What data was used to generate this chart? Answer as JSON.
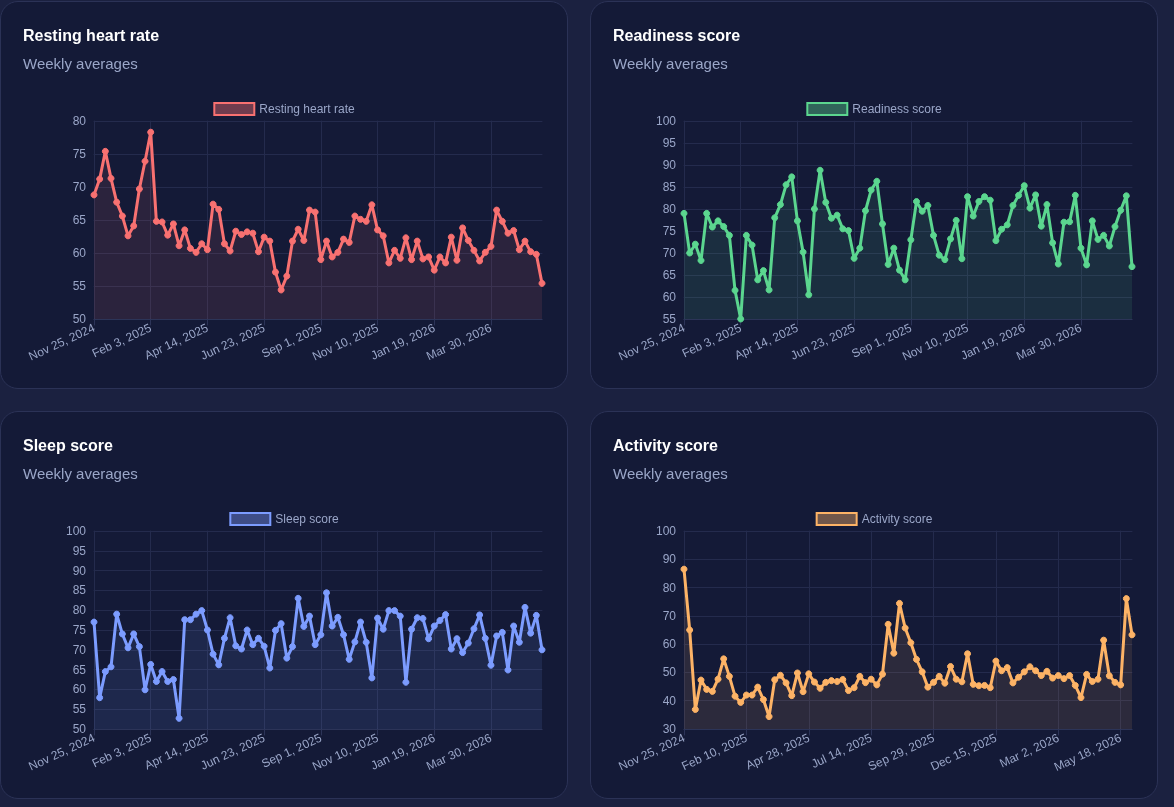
{
  "chart_data": [
    {
      "type": "area",
      "title": "Resting heart rate",
      "subtitle": "Weekly averages",
      "grid": true,
      "legend": "top",
      "marker": "circle",
      "x": [
        "2024-11-25",
        "2024-12-02",
        "2024-12-09",
        "2024-12-16",
        "2024-12-23",
        "2024-12-30",
        "2025-01-06",
        "2025-01-13",
        "2025-01-20",
        "2025-01-27",
        "2025-02-03",
        "2025-02-10",
        "2025-02-17",
        "2025-02-24",
        "2025-03-03",
        "2025-03-10",
        "2025-03-17",
        "2025-03-24",
        "2025-03-31",
        "2025-04-07",
        "2025-04-14",
        "2025-04-21",
        "2025-04-28",
        "2025-05-05",
        "2025-05-12",
        "2025-05-19",
        "2025-05-26",
        "2025-06-02",
        "2025-06-09",
        "2025-06-16",
        "2025-06-23",
        "2025-06-30",
        "2025-07-07",
        "2025-07-14",
        "2025-07-21",
        "2025-07-28",
        "2025-08-04",
        "2025-08-11",
        "2025-08-18",
        "2025-08-25",
        "2025-09-01",
        "2025-09-08",
        "2025-09-15",
        "2025-09-22",
        "2025-09-29",
        "2025-10-06",
        "2025-10-13",
        "2025-10-20",
        "2025-10-27",
        "2025-11-03",
        "2025-11-10",
        "2025-11-17",
        "2025-11-24",
        "2025-12-01",
        "2025-12-08",
        "2025-12-15",
        "2025-12-22",
        "2025-12-29",
        "2026-01-05",
        "2026-01-12",
        "2026-01-19",
        "2026-01-26",
        "2026-02-02",
        "2026-02-09",
        "2026-02-16",
        "2026-02-23",
        "2026-03-02",
        "2026-03-09",
        "2026-03-16",
        "2026-03-23",
        "2026-03-30",
        "2026-04-06",
        "2026-04-13",
        "2026-04-20",
        "2026-04-27",
        "2026-05-04",
        "2026-05-11",
        "2026-05-18",
        "2026-05-25",
        "2026-06-01"
      ],
      "xlim": [
        "2024-11-25",
        "2026-06-01"
      ],
      "xticks": [
        {
          "value": "2024-11-25",
          "label": "Nov 25, 2024"
        },
        {
          "value": "2025-02-03",
          "label": "Feb 3, 2025"
        },
        {
          "value": "2025-04-14",
          "label": "Apr 14, 2025"
        },
        {
          "value": "2025-06-23",
          "label": "Jun 23, 2025"
        },
        {
          "value": "2025-09-01",
          "label": "Sep 1, 2025"
        },
        {
          "value": "2025-11-10",
          "label": "Nov 10, 2025"
        },
        {
          "value": "2026-01-19",
          "label": "Jan 19, 2026"
        },
        {
          "value": "2026-03-30",
          "label": "Mar 30, 2026"
        }
      ],
      "ylim": [
        50,
        80
      ],
      "yticks": [
        50,
        55,
        60,
        65,
        70,
        75,
        80
      ],
      "series": [
        {
          "name": "Resting heart rate",
          "color": "#f87171",
          "values": [
            68.8,
            71.2,
            75.4,
            71.3,
            67.7,
            65.6,
            62.6,
            64.1,
            69.7,
            73.9,
            78.3,
            64.8,
            64.7,
            62.7,
            64.4,
            61.1,
            63.5,
            60.7,
            60.1,
            61.4,
            60.5,
            67.4,
            66.6,
            61.4,
            60.3,
            63.3,
            62.8,
            63.2,
            63.0,
            60.2,
            62.4,
            61.8,
            57.1,
            54.4,
            56.5,
            61.8,
            63.6,
            61.9,
            66.5,
            66.2,
            59.0,
            61.8,
            59.4,
            60.1,
            62.1,
            61.6,
            65.6,
            65.1,
            64.8,
            67.3,
            63.5,
            62.6,
            58.5,
            60.4,
            59.2,
            62.3,
            59.0,
            61.8,
            59.1,
            59.4,
            57.4,
            59.4,
            58.5,
            62.4,
            58.9,
            63.8,
            61.9,
            60.4,
            58.8,
            60.1,
            61.0,
            66.5,
            64.8,
            63.0,
            63.4,
            60.5,
            61.8,
            60.2,
            59.8,
            55.4
          ]
        }
      ]
    },
    {
      "type": "area",
      "title": "Readiness score",
      "subtitle": "Weekly averages",
      "grid": true,
      "legend": "top",
      "marker": "circle",
      "x": [
        "2024-11-25",
        "2024-12-02",
        "2024-12-09",
        "2024-12-16",
        "2024-12-23",
        "2024-12-30",
        "2025-01-06",
        "2025-01-13",
        "2025-01-20",
        "2025-01-27",
        "2025-02-03",
        "2025-02-10",
        "2025-02-17",
        "2025-02-24",
        "2025-03-03",
        "2025-03-10",
        "2025-03-17",
        "2025-03-24",
        "2025-03-31",
        "2025-04-07",
        "2025-04-14",
        "2025-04-21",
        "2025-04-28",
        "2025-05-05",
        "2025-05-12",
        "2025-05-19",
        "2025-05-26",
        "2025-06-02",
        "2025-06-09",
        "2025-06-16",
        "2025-06-23",
        "2025-06-30",
        "2025-07-07",
        "2025-07-14",
        "2025-07-21",
        "2025-07-28",
        "2025-08-04",
        "2025-08-11",
        "2025-08-18",
        "2025-08-25",
        "2025-09-01",
        "2025-09-08",
        "2025-09-15",
        "2025-09-22",
        "2025-09-29",
        "2025-10-06",
        "2025-10-13",
        "2025-10-20",
        "2025-10-27",
        "2025-11-03",
        "2025-11-10",
        "2025-11-17",
        "2025-11-24",
        "2025-12-01",
        "2025-12-08",
        "2025-12-15",
        "2025-12-22",
        "2025-12-29",
        "2026-01-05",
        "2026-01-12",
        "2026-01-19",
        "2026-01-26",
        "2026-02-02",
        "2026-02-09",
        "2026-02-16",
        "2026-02-23",
        "2026-03-02",
        "2026-03-09",
        "2026-03-16",
        "2026-03-23",
        "2026-03-30",
        "2026-04-06",
        "2026-04-13",
        "2026-04-20",
        "2026-04-27",
        "2026-05-04",
        "2026-05-11",
        "2026-05-18",
        "2026-05-25",
        "2026-06-01"
      ],
      "xlim": [
        "2024-11-25",
        "2026-06-01"
      ],
      "xticks": [
        {
          "value": "2024-11-25",
          "label": "Nov 25, 2024"
        },
        {
          "value": "2025-02-03",
          "label": "Feb 3, 2025"
        },
        {
          "value": "2025-04-14",
          "label": "Apr 14, 2025"
        },
        {
          "value": "2025-06-23",
          "label": "Jun 23, 2025"
        },
        {
          "value": "2025-09-01",
          "label": "Sep 1, 2025"
        },
        {
          "value": "2025-11-10",
          "label": "Nov 10, 2025"
        },
        {
          "value": "2026-01-19",
          "label": "Jan 19, 2026"
        },
        {
          "value": "2026-03-30",
          "label": "Mar 30, 2026"
        }
      ],
      "ylim": [
        55,
        100
      ],
      "yticks": [
        55,
        60,
        65,
        70,
        75,
        80,
        85,
        90,
        95,
        100
      ],
      "series": [
        {
          "name": "Readiness score",
          "color": "#5bd68f",
          "values": [
            79.0,
            70.0,
            72.0,
            68.3,
            79.0,
            75.9,
            77.3,
            76.0,
            74.0,
            61.5,
            55.0,
            74.0,
            71.8,
            63.9,
            66.0,
            61.6,
            78.0,
            81.0,
            85.5,
            87.3,
            77.3,
            70.2,
            60.5,
            80.0,
            88.8,
            81.5,
            77.9,
            78.6,
            75.5,
            75.1,
            68.8,
            71.1,
            79.6,
            84.3,
            86.3,
            76.6,
            67.4,
            71.1,
            66.1,
            63.9,
            73.0,
            81.7,
            79.5,
            80.8,
            74.0,
            69.5,
            68.5,
            73.2,
            77.4,
            68.7,
            82.8,
            78.4,
            81.7,
            82.8,
            82.0,
            72.8,
            75.4,
            76.4,
            80.8,
            83.1,
            85.3,
            80.2,
            83.2,
            76.1,
            81.0,
            72.3,
            67.5,
            77.0,
            77.1,
            83.1,
            71.1,
            67.3,
            77.3,
            73.1,
            74.0,
            71.6,
            76.0,
            79.7,
            83.0,
            66.9
          ]
        }
      ]
    },
    {
      "type": "area",
      "title": "Sleep score",
      "subtitle": "Weekly averages",
      "grid": true,
      "legend": "top",
      "marker": "circle",
      "x": [
        "2024-11-25",
        "2024-12-02",
        "2024-12-09",
        "2024-12-16",
        "2024-12-23",
        "2024-12-30",
        "2025-01-06",
        "2025-01-13",
        "2025-01-20",
        "2025-01-27",
        "2025-02-03",
        "2025-02-10",
        "2025-02-17",
        "2025-02-24",
        "2025-03-03",
        "2025-03-10",
        "2025-03-17",
        "2025-03-24",
        "2025-03-31",
        "2025-04-07",
        "2025-04-14",
        "2025-04-21",
        "2025-04-28",
        "2025-05-05",
        "2025-05-12",
        "2025-05-19",
        "2025-05-26",
        "2025-06-02",
        "2025-06-09",
        "2025-06-16",
        "2025-06-23",
        "2025-06-30",
        "2025-07-07",
        "2025-07-14",
        "2025-07-21",
        "2025-07-28",
        "2025-08-04",
        "2025-08-11",
        "2025-08-18",
        "2025-08-25",
        "2025-09-01",
        "2025-09-08",
        "2025-09-15",
        "2025-09-22",
        "2025-09-29",
        "2025-10-06",
        "2025-10-13",
        "2025-10-20",
        "2025-10-27",
        "2025-11-03",
        "2025-11-10",
        "2025-11-17",
        "2025-11-24",
        "2025-12-01",
        "2025-12-08",
        "2025-12-15",
        "2025-12-22",
        "2025-12-29",
        "2026-01-05",
        "2026-01-12",
        "2026-01-19",
        "2026-01-26",
        "2026-02-02",
        "2026-02-09",
        "2026-02-16",
        "2026-02-23",
        "2026-03-02",
        "2026-03-09",
        "2026-03-16",
        "2026-03-23",
        "2026-03-30",
        "2026-04-06",
        "2026-04-13",
        "2026-04-20",
        "2026-04-27",
        "2026-05-04",
        "2026-05-11",
        "2026-05-18",
        "2026-05-25",
        "2026-06-01"
      ],
      "xlim": [
        "2024-11-25",
        "2026-06-01"
      ],
      "xticks": [
        {
          "value": "2024-11-25",
          "label": "Nov 25, 2024"
        },
        {
          "value": "2025-02-03",
          "label": "Feb 3, 2025"
        },
        {
          "value": "2025-04-14",
          "label": "Apr 14, 2025"
        },
        {
          "value": "2025-06-23",
          "label": "Jun 23, 2025"
        },
        {
          "value": "2025-09-01",
          "label": "Sep 1, 2025"
        },
        {
          "value": "2025-11-10",
          "label": "Nov 10, 2025"
        },
        {
          "value": "2026-01-19",
          "label": "Jan 19, 2026"
        },
        {
          "value": "2026-03-30",
          "label": "Mar 30, 2026"
        }
      ],
      "ylim": [
        50,
        100
      ],
      "yticks": [
        50,
        55,
        60,
        65,
        70,
        75,
        80,
        85,
        90,
        95,
        100
      ],
      "series": [
        {
          "name": "Sleep score",
          "color": "#7c9cff",
          "values": [
            77.0,
            57.9,
            64.5,
            65.7,
            79.0,
            74.0,
            70.5,
            74.0,
            70.8,
            59.9,
            66.3,
            62.0,
            64.5,
            62.0,
            62.5,
            52.7,
            77.6,
            77.6,
            79.0,
            79.9,
            75.0,
            68.9,
            66.2,
            72.9,
            78.1,
            71.0,
            70.2,
            75.0,
            71.3,
            72.9,
            70.9,
            65.4,
            74.9,
            76.6,
            67.9,
            70.8,
            83.0,
            75.9,
            78.5,
            71.3,
            73.8,
            84.4,
            76.0,
            78.2,
            73.8,
            67.6,
            72.0,
            77.0,
            71.9,
            62.9,
            78.0,
            75.2,
            79.9,
            79.9,
            78.5,
            61.8,
            75.2,
            78.1,
            77.9,
            72.8,
            76.0,
            77.4,
            78.9,
            70.2,
            72.8,
            69.3,
            71.7,
            75.3,
            78.8,
            72.9,
            66.1,
            73.5,
            74.4,
            64.9,
            76.0,
            71.9,
            80.7,
            74.2,
            78.7,
            70.0
          ]
        }
      ]
    },
    {
      "type": "area",
      "title": "Activity score",
      "subtitle": "Weekly averages",
      "grid": true,
      "legend": "top",
      "marker": "circle",
      "x": [
        "2024-11-25",
        "2024-12-02",
        "2024-12-09",
        "2024-12-16",
        "2024-12-23",
        "2024-12-30",
        "2025-01-06",
        "2025-01-13",
        "2025-01-20",
        "2025-01-27",
        "2025-02-03",
        "2025-02-10",
        "2025-02-17",
        "2025-02-24",
        "2025-03-03",
        "2025-03-10",
        "2025-03-17",
        "2025-03-24",
        "2025-03-31",
        "2025-04-07",
        "2025-04-14",
        "2025-04-21",
        "2025-04-28",
        "2025-05-05",
        "2025-05-12",
        "2025-05-19",
        "2025-05-26",
        "2025-06-02",
        "2025-06-09",
        "2025-06-16",
        "2025-06-23",
        "2025-06-30",
        "2025-07-07",
        "2025-07-14",
        "2025-07-21",
        "2025-07-28",
        "2025-08-04",
        "2025-08-11",
        "2025-08-18",
        "2025-08-25",
        "2025-09-01",
        "2025-09-08",
        "2025-09-15",
        "2025-09-22",
        "2025-09-29",
        "2025-10-06",
        "2025-10-13",
        "2025-10-20",
        "2025-10-27",
        "2025-11-03",
        "2025-11-10",
        "2025-11-17",
        "2025-11-24",
        "2025-12-01",
        "2025-12-08",
        "2025-12-15",
        "2025-12-22",
        "2025-12-29",
        "2026-01-05",
        "2026-01-12",
        "2026-01-19",
        "2026-01-26",
        "2026-02-02",
        "2026-02-09",
        "2026-02-16",
        "2026-02-23",
        "2026-03-02",
        "2026-03-09",
        "2026-03-16",
        "2026-03-23",
        "2026-03-30",
        "2026-04-06",
        "2026-04-13",
        "2026-04-20",
        "2026-04-27",
        "2026-05-04",
        "2026-05-11",
        "2026-05-18",
        "2026-05-25",
        "2026-06-01"
      ],
      "xlim": [
        "2024-11-25",
        "2026-06-01"
      ],
      "xticks": [
        {
          "value": "2024-11-25",
          "label": "Nov 25, 2024"
        },
        {
          "value": "2025-02-10",
          "label": "Feb 10, 2025"
        },
        {
          "value": "2025-04-28",
          "label": "Apr 28, 2025"
        },
        {
          "value": "2025-07-14",
          "label": "Jul 14, 2025"
        },
        {
          "value": "2025-09-29",
          "label": "Sep 29, 2025"
        },
        {
          "value": "2025-12-15",
          "label": "Dec 15, 2025"
        },
        {
          "value": "2026-03-02",
          "label": "Mar 2, 2026"
        },
        {
          "value": "2026-05-18",
          "label": "May 18, 2026"
        }
      ],
      "ylim": [
        30,
        100
      ],
      "yticks": [
        30,
        40,
        50,
        60,
        70,
        80,
        90,
        100
      ],
      "series": [
        {
          "name": "Activity score",
          "color": "#fdb366",
          "values": [
            86.5,
            65.0,
            36.9,
            47.3,
            44.0,
            43.3,
            47.6,
            54.8,
            48.6,
            41.6,
            39.4,
            42.0,
            42.0,
            44.8,
            40.4,
            34.4,
            47.4,
            49.0,
            46.3,
            41.8,
            49.8,
            43.2,
            49.5,
            46.6,
            44.4,
            46.5,
            47.1,
            46.8,
            47.5,
            43.6,
            44.6,
            48.6,
            46.4,
            47.6,
            45.6,
            49.4,
            67.0,
            56.8,
            74.4,
            65.7,
            60.5,
            54.6,
            50.2,
            44.8,
            46.5,
            48.6,
            46.2,
            52.1,
            47.6,
            46.7,
            56.6,
            45.8,
            45.3,
            45.4,
            44.6,
            54.0,
            50.6,
            51.7,
            46.3,
            48.3,
            50.2,
            52.0,
            50.6,
            48.9,
            50.4,
            48.0,
            48.9,
            47.8,
            48.9,
            45.4,
            41.1,
            49.3,
            46.8,
            47.6,
            61.4,
            48.8,
            46.5,
            45.6,
            76.1,
            63.3
          ]
        }
      ]
    }
  ]
}
